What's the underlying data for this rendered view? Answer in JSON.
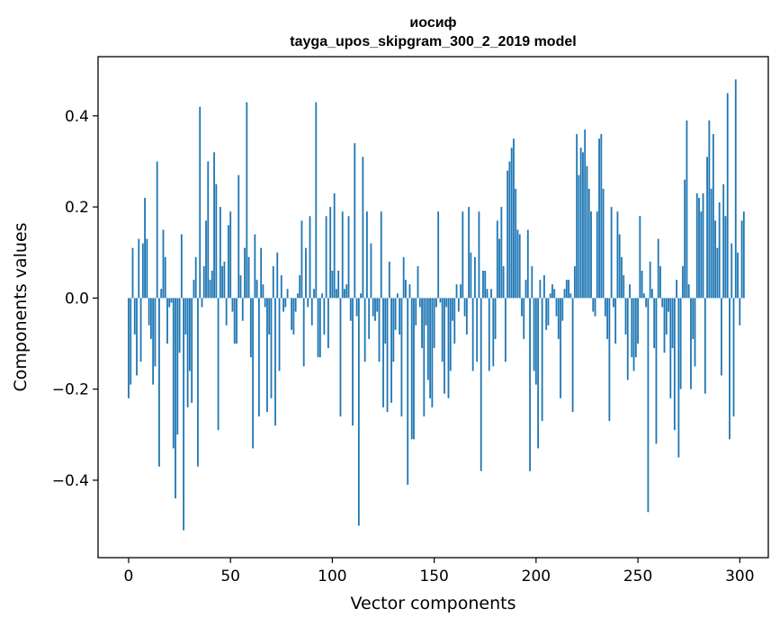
{
  "chart_data": {
    "type": "bar",
    "title": "иосиф",
    "subtitle": "tayga_upos_skipgram_300_2_2019 model",
    "xlabel": "Vector components",
    "ylabel": "Components values",
    "xlim": [
      -15,
      314
    ],
    "ylim": [
      -0.57,
      0.53
    ],
    "xticks": [
      0,
      50,
      100,
      150,
      200,
      250,
      300
    ],
    "xtick_labels": [
      "0",
      "50",
      "100",
      "150",
      "200",
      "250",
      "300"
    ],
    "yticks": [
      -0.4,
      -0.2,
      0.0,
      0.2,
      0.4
    ],
    "ytick_labels": [
      "−0.4",
      "−0.2",
      "0.0",
      "0.2",
      "0.4"
    ],
    "bar_color": "#1f77b4",
    "grid": false,
    "values": [
      -0.22,
      -0.19,
      0.11,
      -0.08,
      -0.17,
      0.13,
      -0.14,
      0.12,
      0.22,
      0.13,
      -0.06,
      -0.09,
      -0.19,
      -0.15,
      0.3,
      -0.37,
      0.02,
      0.15,
      0.09,
      -0.1,
      -0.02,
      -0.01,
      -0.33,
      -0.44,
      -0.3,
      -0.12,
      0.14,
      -0.51,
      -0.08,
      -0.24,
      -0.16,
      -0.23,
      0.04,
      0.09,
      -0.37,
      0.42,
      -0.02,
      0.07,
      0.17,
      0.3,
      0.04,
      0.06,
      0.32,
      0.25,
      -0.29,
      0.2,
      0.07,
      0.08,
      -0.06,
      0.16,
      0.19,
      -0.03,
      -0.1,
      -0.1,
      0.27,
      0.05,
      -0.05,
      0.11,
      0.43,
      0.09,
      -0.13,
      -0.33,
      0.14,
      0.04,
      -0.26,
      0.11,
      0.03,
      -0.02,
      -0.25,
      -0.08,
      -0.22,
      0.07,
      -0.28,
      0.1,
      -0.16,
      0.05,
      -0.03,
      -0.02,
      0.02,
      0.0,
      -0.07,
      -0.08,
      -0.03,
      0.01,
      0.05,
      0.17,
      -0.15,
      0.11,
      -0.02,
      0.18,
      -0.06,
      0.02,
      0.43,
      -0.13,
      -0.13,
      0.01,
      -0.08,
      0.18,
      -0.11,
      0.2,
      0.06,
      0.23,
      0.02,
      0.06,
      -0.26,
      0.19,
      0.02,
      0.03,
      0.18,
      -0.05,
      -0.28,
      0.34,
      -0.04,
      -0.5,
      0.01,
      0.31,
      -0.14,
      0.19,
      -0.09,
      0.12,
      -0.04,
      -0.05,
      -0.03,
      -0.14,
      0.19,
      -0.24,
      -0.1,
      -0.25,
      0.08,
      -0.23,
      -0.14,
      -0.07,
      0.01,
      -0.08,
      -0.26,
      0.09,
      0.04,
      -0.41,
      0.03,
      -0.31,
      -0.31,
      -0.06,
      0.07,
      -0.02,
      -0.11,
      -0.26,
      -0.06,
      -0.18,
      -0.22,
      -0.24,
      -0.11,
      -0.02,
      0.19,
      -0.01,
      -0.14,
      -0.21,
      -0.02,
      -0.22,
      -0.16,
      -0.05,
      -0.1,
      0.03,
      -0.03,
      0.03,
      0.19,
      -0.04,
      -0.08,
      0.2,
      0.1,
      -0.16,
      0.09,
      -0.14,
      0.19,
      -0.38,
      0.06,
      0.06,
      0.02,
      -0.16,
      0.02,
      -0.15,
      -0.09,
      0.17,
      0.13,
      0.2,
      0.07,
      -0.14,
      0.28,
      0.3,
      0.33,
      0.35,
      0.24,
      0.15,
      0.14,
      -0.04,
      -0.09,
      0.04,
      0.15,
      -0.38,
      0.07,
      -0.16,
      -0.19,
      -0.33,
      0.04,
      -0.27,
      0.05,
      -0.07,
      -0.06,
      0.01,
      0.03,
      0.02,
      -0.04,
      -0.09,
      -0.22,
      -0.05,
      0.02,
      0.04,
      0.04,
      0.01,
      -0.25,
      0.07,
      0.36,
      0.27,
      0.33,
      0.32,
      0.37,
      0.29,
      0.24,
      0.19,
      -0.03,
      -0.04,
      0.19,
      0.35,
      0.36,
      0.24,
      -0.04,
      -0.09,
      -0.27,
      0.2,
      -0.02,
      -0.1,
      0.19,
      0.14,
      0.09,
      0.05,
      -0.08,
      -0.18,
      0.03,
      -0.13,
      -0.16,
      -0.13,
      -0.1,
      0.18,
      0.06,
      0.01,
      -0.02,
      -0.47,
      0.08,
      0.02,
      -0.11,
      -0.32,
      0.13,
      0.07,
      -0.02,
      -0.12,
      -0.08,
      -0.03,
      -0.22,
      -0.11,
      -0.29,
      0.04,
      -0.35,
      -0.2,
      0.07,
      0.26,
      0.39,
      0.03,
      -0.2,
      -0.09,
      -0.15,
      0.23,
      0.22,
      0.19,
      0.23,
      -0.21,
      0.31,
      0.39,
      0.24,
      0.36,
      0.17,
      0.11,
      0.21,
      -0.17,
      0.25,
      0.18,
      0.45,
      -0.31,
      0.12,
      -0.26,
      0.48,
      0.1,
      -0.06,
      0.17,
      0.19
    ]
  }
}
